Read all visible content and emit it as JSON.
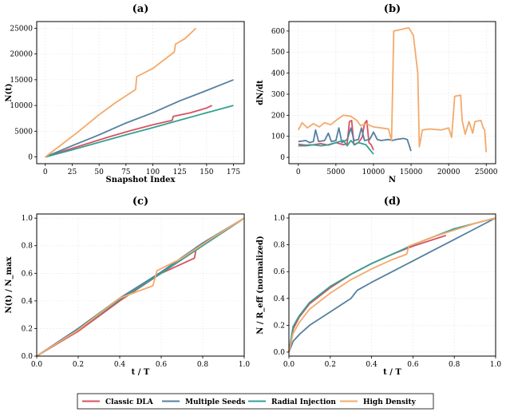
{
  "colors": {
    "classic": "#d9515e",
    "multi": "#5580a0",
    "radial": "#34a093",
    "high": "#f4a96a"
  },
  "legend": [
    "Classic DLA",
    "Multiple Seeds",
    "Radial Injection",
    "High Density"
  ],
  "chart_data": [
    {
      "panel": "(a)",
      "type": "line",
      "title": "(a)",
      "xlabel": "Snapshot Index",
      "ylabel": "N(t)",
      "xlim": [
        -8,
        185
      ],
      "ylim": [
        -1300,
        26300
      ],
      "xticks": [
        0,
        25,
        50,
        75,
        100,
        125,
        150,
        175
      ],
      "yticks": [
        0,
        5000,
        10000,
        15000,
        20000,
        25000
      ],
      "xtick_labels": [
        "0",
        "25",
        "50",
        "75",
        "100",
        "125",
        "150",
        "175"
      ],
      "ytick_labels": [
        "0",
        "5000",
        "10000",
        "15000",
        "20000",
        "25000"
      ],
      "series": [
        {
          "name": "Classic DLA",
          "key": "classic",
          "points": [
            [
              0,
              0
            ],
            [
              20,
              1350
            ],
            [
              40,
              2650
            ],
            [
              60,
              3950
            ],
            [
              80,
              5150
            ],
            [
              100,
              6250
            ],
            [
              118,
              7100
            ],
            [
              119,
              7900
            ],
            [
              135,
              8600
            ],
            [
              150,
              9500
            ],
            [
              155,
              10000
            ]
          ]
        },
        {
          "name": "Multiple Seeds",
          "key": "multi",
          "points": [
            [
              0,
              0
            ],
            [
              25,
              2200
            ],
            [
              50,
              4300
            ],
            [
              75,
              6600
            ],
            [
              100,
              8600
            ],
            [
              125,
              10900
            ],
            [
              150,
              12900
            ],
            [
              175,
              15000
            ]
          ]
        },
        {
          "name": "Radial Injection",
          "key": "radial",
          "points": [
            [
              0,
              0
            ],
            [
              25,
              1400
            ],
            [
              50,
              2850
            ],
            [
              75,
              4300
            ],
            [
              100,
              5700
            ],
            [
              125,
              7150
            ],
            [
              150,
              8600
            ],
            [
              175,
              10000
            ]
          ]
        },
        {
          "name": "High Density",
          "key": "high",
          "points": [
            [
              0,
              0
            ],
            [
              15,
              2400
            ],
            [
              30,
              4800
            ],
            [
              50,
              8200
            ],
            [
              65,
              10500
            ],
            [
              84,
              13100
            ],
            [
              85,
              15600
            ],
            [
              100,
              17200
            ],
            [
              120,
              20400
            ],
            [
              121,
              21900
            ],
            [
              130,
              23000
            ],
            [
              140,
              25000
            ]
          ]
        }
      ]
    },
    {
      "panel": "(b)",
      "type": "line",
      "title": "(b)",
      "xlabel": "N",
      "ylabel": "dN/dt",
      "xlim": [
        -1250,
        26250
      ],
      "ylim": [
        -30,
        645
      ],
      "xticks": [
        0,
        5000,
        10000,
        15000,
        20000,
        25000
      ],
      "yticks": [
        0,
        100,
        200,
        300,
        400,
        500,
        600
      ],
      "xtick_labels": [
        "0",
        "5000",
        "10000",
        "15000",
        "20000",
        "25000"
      ],
      "ytick_labels": [
        "0",
        "100",
        "200",
        "300",
        "400",
        "500",
        "600"
      ],
      "series": [
        {
          "name": "Classic DLA",
          "key": "classic",
          "points": [
            [
              0,
              62
            ],
            [
              1000,
              58
            ],
            [
              2000,
              60
            ],
            [
              3000,
              65
            ],
            [
              4000,
              58
            ],
            [
              5000,
              70
            ],
            [
              6000,
              60
            ],
            [
              6500,
              65
            ],
            [
              6800,
              170
            ],
            [
              7100,
              175
            ],
            [
              7400,
              60
            ],
            [
              8000,
              70
            ],
            [
              8500,
              95
            ],
            [
              8800,
              160
            ],
            [
              9100,
              175
            ],
            [
              9400,
              70
            ],
            [
              9700,
              60
            ],
            [
              10000,
              35
            ]
          ]
        },
        {
          "name": "Multiple Seeds",
          "key": "multi",
          "points": [
            [
              0,
              75
            ],
            [
              1000,
              80
            ],
            [
              1500,
              70
            ],
            [
              2000,
              75
            ],
            [
              2300,
              130
            ],
            [
              2700,
              75
            ],
            [
              3500,
              80
            ],
            [
              4000,
              115
            ],
            [
              4400,
              75
            ],
            [
              5000,
              80
            ],
            [
              5400,
              140
            ],
            [
              5800,
              70
            ],
            [
              6500,
              85
            ],
            [
              7000,
              140
            ],
            [
              7400,
              80
            ],
            [
              8000,
              85
            ],
            [
              8400,
              140
            ],
            [
              8800,
              80
            ],
            [
              9500,
              85
            ],
            [
              10000,
              120
            ],
            [
              10500,
              85
            ],
            [
              11000,
              80
            ],
            [
              12000,
              85
            ],
            [
              12500,
              80
            ],
            [
              13000,
              85
            ],
            [
              14000,
              90
            ],
            [
              14500,
              85
            ],
            [
              15000,
              30
            ]
          ]
        },
        {
          "name": "Radial Injection",
          "key": "radial",
          "points": [
            [
              0,
              55
            ],
            [
              1000,
              55
            ],
            [
              2000,
              60
            ],
            [
              3000,
              55
            ],
            [
              4000,
              60
            ],
            [
              5000,
              70
            ],
            [
              6000,
              80
            ],
            [
              6500,
              55
            ],
            [
              7000,
              80
            ],
            [
              7500,
              60
            ],
            [
              8000,
              70
            ],
            [
              9000,
              60
            ],
            [
              10000,
              15
            ]
          ]
        },
        {
          "name": "High Density",
          "key": "high",
          "points": [
            [
              0,
              130
            ],
            [
              500,
              165
            ],
            [
              1200,
              140
            ],
            [
              2000,
              160
            ],
            [
              2800,
              145
            ],
            [
              3500,
              165
            ],
            [
              4300,
              155
            ],
            [
              5000,
              175
            ],
            [
              6000,
              200
            ],
            [
              7000,
              195
            ],
            [
              7800,
              175
            ],
            [
              8300,
              150
            ],
            [
              9000,
              160
            ],
            [
              10000,
              145
            ],
            [
              11000,
              140
            ],
            [
              12000,
              135
            ],
            [
              12400,
              80
            ],
            [
              12700,
              600
            ],
            [
              14200,
              612
            ],
            [
              14700,
              615
            ],
            [
              15300,
              580
            ],
            [
              15900,
              400
            ],
            [
              16100,
              50
            ],
            [
              16500,
              130
            ],
            [
              17500,
              135
            ],
            [
              19000,
              130
            ],
            [
              20000,
              140
            ],
            [
              20400,
              95
            ],
            [
              20800,
              290
            ],
            [
              21600,
              295
            ],
            [
              21800,
              175
            ],
            [
              22200,
              110
            ],
            [
              22700,
              170
            ],
            [
              23200,
              115
            ],
            [
              23500,
              170
            ],
            [
              24300,
              175
            ],
            [
              24600,
              140
            ],
            [
              24800,
              130
            ],
            [
              25000,
              25
            ]
          ]
        }
      ]
    },
    {
      "panel": "(c)",
      "type": "line",
      "title": "(c)",
      "xlabel": "t / T",
      "ylabel": "N(t) / N_max",
      "xlim": [
        0,
        1
      ],
      "ylim": [
        0,
        1.03
      ],
      "xticks": [
        0.0,
        0.2,
        0.4,
        0.6,
        0.8,
        1.0
      ],
      "yticks": [
        0.0,
        0.2,
        0.4,
        0.6,
        0.8,
        1.0
      ],
      "xtick_labels": [
        "0.0",
        "0.2",
        "0.4",
        "0.6",
        "0.8",
        "1.0"
      ],
      "ytick_labels": [
        "0.0",
        "0.2",
        "0.4",
        "0.6",
        "0.8",
        "1.0"
      ],
      "series": [
        {
          "name": "Classic DLA",
          "key": "classic",
          "points": [
            [
              0,
              0
            ],
            [
              0.2,
              0.18
            ],
            [
              0.4,
              0.4
            ],
            [
              0.6,
              0.6
            ],
            [
              0.76,
              0.71
            ],
            [
              0.77,
              0.79
            ],
            [
              0.9,
              0.9
            ],
            [
              1.0,
              1.0
            ]
          ]
        },
        {
          "name": "Multiple Seeds",
          "key": "multi",
          "points": [
            [
              0,
              0
            ],
            [
              0.2,
              0.2
            ],
            [
              0.4,
              0.42
            ],
            [
              0.6,
              0.61
            ],
            [
              0.8,
              0.82
            ],
            [
              1.0,
              1.0
            ]
          ]
        },
        {
          "name": "Radial Injection",
          "key": "radial",
          "points": [
            [
              0,
              0
            ],
            [
              0.2,
              0.19
            ],
            [
              0.4,
              0.41
            ],
            [
              0.6,
              0.6
            ],
            [
              0.8,
              0.8
            ],
            [
              1.0,
              1.0
            ]
          ]
        },
        {
          "name": "High Density",
          "key": "high",
          "points": [
            [
              0,
              0
            ],
            [
              0.2,
              0.19
            ],
            [
              0.4,
              0.42
            ],
            [
              0.56,
              0.51
            ],
            [
              0.58,
              0.62
            ],
            [
              0.7,
              0.71
            ],
            [
              0.85,
              0.86
            ],
            [
              1.0,
              1.0
            ]
          ]
        }
      ]
    },
    {
      "panel": "(d)",
      "type": "line",
      "title": "(d)",
      "xlabel": "t / T",
      "ylabel": "N / R_eff (normalized)",
      "xlim": [
        0,
        1
      ],
      "ylim": [
        -0.03,
        1.03
      ],
      "xticks": [
        0.0,
        0.2,
        0.4,
        0.6,
        0.8,
        1.0
      ],
      "yticks": [
        0.0,
        0.2,
        0.4,
        0.6,
        0.8,
        1.0
      ],
      "xtick_labels": [
        "0.0",
        "0.2",
        "0.4",
        "0.6",
        "0.8",
        "1.0"
      ],
      "ytick_labels": [
        "0.0",
        "0.2",
        "0.4",
        "0.6",
        "0.8",
        "1.0"
      ],
      "series": [
        {
          "name": "Classic DLA",
          "key": "classic",
          "points": [
            [
              0,
              0
            ],
            [
              0.02,
              0.17
            ],
            [
              0.05,
              0.26
            ],
            [
              0.1,
              0.36
            ],
            [
              0.2,
              0.48
            ],
            [
              0.3,
              0.58
            ],
            [
              0.4,
              0.66
            ],
            [
              0.5,
              0.73
            ],
            [
              0.6,
              0.79
            ],
            [
              0.7,
              0.84
            ],
            [
              0.76,
              0.87
            ]
          ]
        },
        {
          "name": "Multiple Seeds",
          "key": "multi",
          "points": [
            [
              0,
              0
            ],
            [
              0.02,
              0.08
            ],
            [
              0.05,
              0.13
            ],
            [
              0.1,
              0.2
            ],
            [
              0.2,
              0.3
            ],
            [
              0.3,
              0.4
            ],
            [
              0.33,
              0.46
            ],
            [
              0.4,
              0.52
            ],
            [
              0.5,
              0.6
            ],
            [
              0.6,
              0.68
            ],
            [
              0.7,
              0.76
            ],
            [
              0.8,
              0.84
            ],
            [
              0.9,
              0.92
            ],
            [
              1.0,
              1.0
            ]
          ]
        },
        {
          "name": "Radial Injection",
          "key": "radial",
          "points": [
            [
              0,
              0
            ],
            [
              0.02,
              0.19
            ],
            [
              0.05,
              0.27
            ],
            [
              0.1,
              0.37
            ],
            [
              0.2,
              0.49
            ],
            [
              0.3,
              0.58
            ],
            [
              0.4,
              0.66
            ],
            [
              0.5,
              0.73
            ],
            [
              0.6,
              0.8
            ],
            [
              0.7,
              0.86
            ],
            [
              0.8,
              0.92
            ],
            [
              0.9,
              0.96
            ],
            [
              1.0,
              1.0
            ]
          ]
        },
        {
          "name": "High Density",
          "key": "high",
          "points": [
            [
              0,
              0
            ],
            [
              0.02,
              0.14
            ],
            [
              0.05,
              0.22
            ],
            [
              0.1,
              0.32
            ],
            [
              0.2,
              0.44
            ],
            [
              0.3,
              0.54
            ],
            [
              0.4,
              0.62
            ],
            [
              0.5,
              0.69
            ],
            [
              0.57,
              0.73
            ],
            [
              0.58,
              0.79
            ],
            [
              0.7,
              0.86
            ],
            [
              0.8,
              0.91
            ],
            [
              0.9,
              0.96
            ],
            [
              1.0,
              1.0
            ]
          ]
        }
      ]
    }
  ]
}
